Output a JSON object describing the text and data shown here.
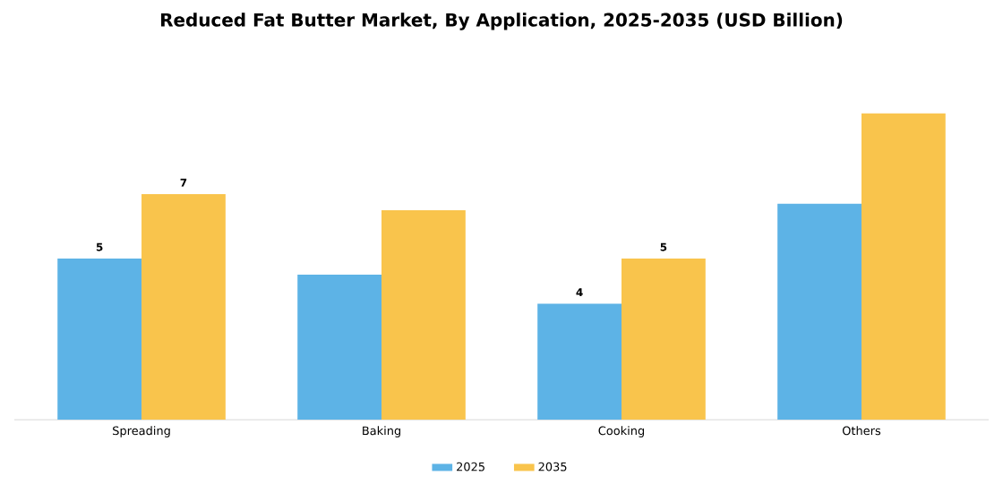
{
  "chart_data": {
    "type": "bar",
    "title": "Reduced Fat Butter Market, By Application, 2025-2035 (USD Billion)",
    "categories": [
      "Spreading",
      "Baking",
      "Cooking",
      "Others"
    ],
    "series": [
      {
        "name": "2025",
        "color": "#5db3e6",
        "values": [
          5,
          4.5,
          3.6,
          6.7
        ],
        "value_labels": [
          "5",
          null,
          "4",
          null
        ]
      },
      {
        "name": "2035",
        "color": "#f9c44c",
        "values": [
          7,
          6.5,
          5,
          9.5
        ],
        "value_labels": [
          "7",
          null,
          "5",
          null
        ]
      }
    ],
    "legend": "bottom"
  }
}
